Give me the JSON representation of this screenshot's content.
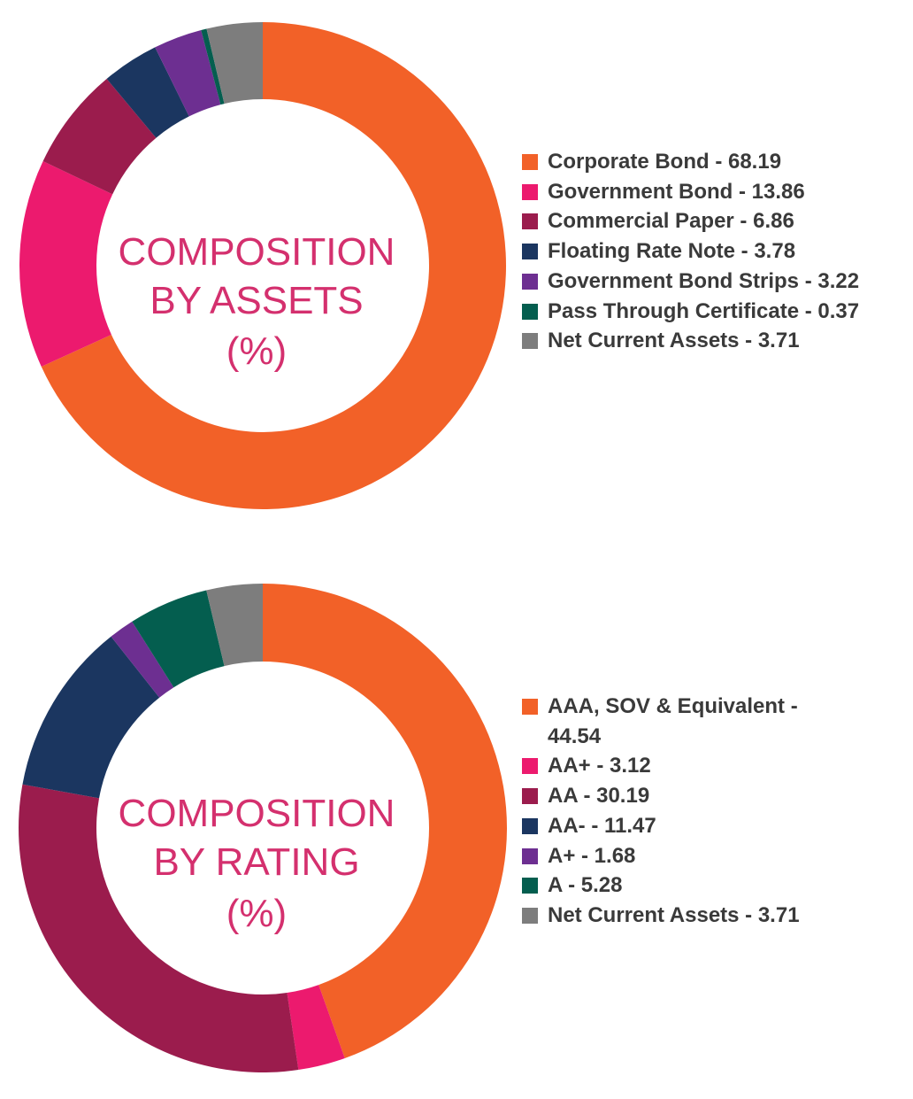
{
  "chart_data": [
    {
      "type": "pie",
      "variant": "donut",
      "center_label": [
        "COMPOSITION",
        "BY ASSETS",
        "(%)"
      ],
      "legend_placement": "right",
      "series": [
        {
          "label": "Corporate Bond - 68.19",
          "value": 68.19,
          "color": "#f26128"
        },
        {
          "label": "Government Bond - 13.86",
          "value": 13.86,
          "color": "#ec1a6e"
        },
        {
          "label": "Commercial Paper - 6.86",
          "value": 6.86,
          "color": "#9b1c4d"
        },
        {
          "label": "Floating Rate Note - 3.78",
          "value": 3.78,
          "color": "#1b3660"
        },
        {
          "label": "Government Bond Strips - 3.22",
          "value": 3.22,
          "color": "#6d2f91"
        },
        {
          "label": "Pass Through Certificate - 0.37",
          "value": 0.37,
          "color": "#045e4f"
        },
        {
          "label": "Net Current Assets - 3.71",
          "value": 3.71,
          "color": "#7d7d7d"
        }
      ]
    },
    {
      "type": "pie",
      "variant": "donut",
      "center_label": [
        "COMPOSITION",
        "BY RATING",
        "(%)"
      ],
      "legend_placement": "right",
      "series": [
        {
          "label": "AAA, SOV & Equivalent - 44.54",
          "value": 44.54,
          "color": "#f26128"
        },
        {
          "label": "AA+ - 3.12",
          "value": 3.12,
          "color": "#ec1a6e"
        },
        {
          "label": "AA - 30.19",
          "value": 30.19,
          "color": "#9b1c4d"
        },
        {
          "label": "AA- - 11.47",
          "value": 11.47,
          "color": "#1b3660"
        },
        {
          "label": "A+ - 1.68",
          "value": 1.68,
          "color": "#6d2f91"
        },
        {
          "label": "A - 5.28",
          "value": 5.28,
          "color": "#045e4f"
        },
        {
          "label": "Net Current Assets - 3.71",
          "value": 3.71,
          "color": "#7d7d7d"
        }
      ]
    }
  ]
}
